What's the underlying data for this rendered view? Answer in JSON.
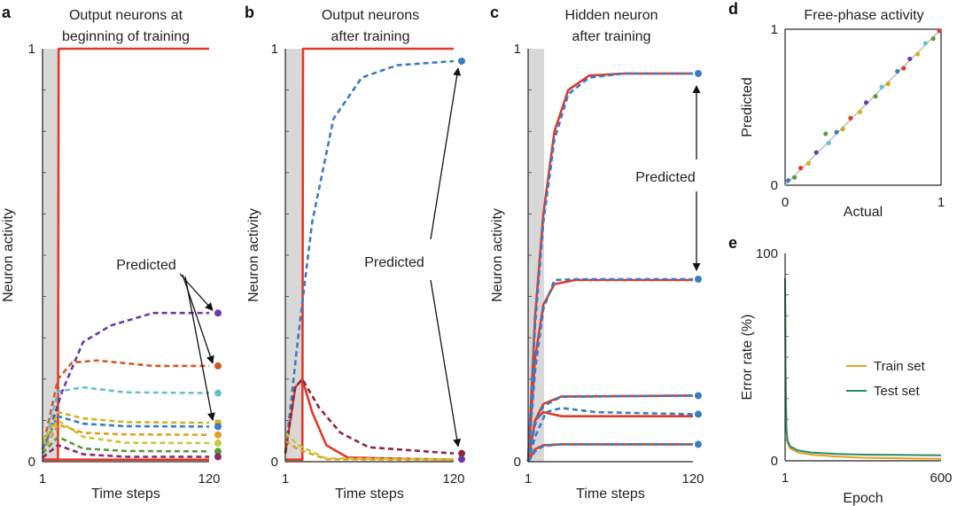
{
  "chart_data": [
    {
      "id": "a",
      "panel_label": "a",
      "type": "line",
      "title_lines": [
        "Output neurons at",
        "beginning of training"
      ],
      "xlabel": "Time steps",
      "ylabel": "Neuron activity",
      "xticks": [
        "1",
        "120"
      ],
      "yticks": [
        "0",
        "1"
      ],
      "xlim": [
        1,
        120
      ],
      "ylim": [
        0,
        1
      ],
      "annotation": "Predicted",
      "series": [
        {
          "style": "solid",
          "color": "#e03a2a",
          "points": [
            [
              1,
              0.005
            ],
            [
              12,
              0.005
            ],
            [
              12.5,
              1
            ],
            [
              120,
              1
            ]
          ]
        },
        {
          "style": "solid",
          "color": "#e03a2a",
          "points": [
            [
              1,
              0.005
            ],
            [
              120,
              0.005
            ]
          ]
        },
        {
          "style": "dashed",
          "color": "#6a3aa8",
          "points": [
            [
              1,
              0.02
            ],
            [
              15,
              0.17
            ],
            [
              30,
              0.29
            ],
            [
              50,
              0.33
            ],
            [
              80,
              0.36
            ],
            [
              120,
              0.36
            ]
          ]
        },
        {
          "style": "dashed",
          "color": "#d05a2a",
          "points": [
            [
              1,
              0.03
            ],
            [
              12,
              0.2
            ],
            [
              22,
              0.24
            ],
            [
              40,
              0.245
            ],
            [
              80,
              0.232
            ],
            [
              120,
              0.232
            ]
          ]
        },
        {
          "style": "dashed",
          "color": "#66c0cc",
          "points": [
            [
              1,
              0.02
            ],
            [
              12,
              0.17
            ],
            [
              30,
              0.18
            ],
            [
              60,
              0.168
            ],
            [
              120,
              0.166
            ]
          ]
        },
        {
          "style": "dashed",
          "color": "#d4b21a",
          "points": [
            [
              1,
              0.04
            ],
            [
              12,
              0.12
            ],
            [
              30,
              0.105
            ],
            [
              60,
              0.096
            ],
            [
              120,
              0.094
            ]
          ]
        },
        {
          "style": "dashed",
          "color": "#3a7cc4",
          "points": [
            [
              1,
              0.03
            ],
            [
              12,
              0.11
            ],
            [
              30,
              0.092
            ],
            [
              60,
              0.086
            ],
            [
              120,
              0.085
            ]
          ]
        },
        {
          "style": "dashed",
          "color": "#e0a020",
          "points": [
            [
              1,
              0.02
            ],
            [
              12,
              0.09
            ],
            [
              30,
              0.07
            ],
            [
              60,
              0.066
            ],
            [
              120,
              0.065
            ]
          ]
        },
        {
          "style": "dashed",
          "color": "#c8c83a",
          "points": [
            [
              1,
              0.05
            ],
            [
              12,
              0.1
            ],
            [
              30,
              0.06
            ],
            [
              60,
              0.046
            ],
            [
              120,
              0.045
            ]
          ]
        },
        {
          "style": "dashed",
          "color": "#5a9a3a",
          "points": [
            [
              1,
              0.02
            ],
            [
              12,
              0.06
            ],
            [
              30,
              0.032
            ],
            [
              60,
              0.026
            ],
            [
              120,
              0.025
            ]
          ]
        },
        {
          "style": "dashed",
          "color": "#8a2a6a",
          "points": [
            [
              1,
              0.01
            ],
            [
              12,
              0.04
            ],
            [
              30,
              0.018
            ],
            [
              60,
              0.012
            ],
            [
              120,
              0.012
            ]
          ]
        }
      ],
      "end_markers": [
        {
          "y": 0.36,
          "color": "#6a3aa8"
        },
        {
          "y": 0.232,
          "color": "#d05a2a"
        },
        {
          "y": 0.166,
          "color": "#66c0cc"
        },
        {
          "y": 0.094,
          "color": "#d4b21a"
        },
        {
          "y": 0.085,
          "color": "#3a7cc4"
        },
        {
          "y": 0.065,
          "color": "#e0a020"
        },
        {
          "y": 0.045,
          "color": "#c8c83a"
        },
        {
          "y": 0.025,
          "color": "#5a9a3a"
        },
        {
          "y": 0.012,
          "color": "#8a2a6a"
        }
      ]
    },
    {
      "id": "b",
      "panel_label": "b",
      "type": "line",
      "title_lines": [
        "Output neurons",
        "after training"
      ],
      "xlabel": "Time steps",
      "ylabel": "Neuron activity",
      "xticks": [
        "1",
        "120"
      ],
      "yticks": [
        "0",
        "1"
      ],
      "xlim": [
        1,
        120
      ],
      "ylim": [
        0,
        1
      ],
      "annotation": "Predicted",
      "series": [
        {
          "style": "solid",
          "color": "#e03a2a",
          "points": [
            [
              1,
              0.005
            ],
            [
              13,
              0.005
            ],
            [
              13.5,
              1
            ],
            [
              120,
              1
            ]
          ]
        },
        {
          "style": "solid",
          "color": "#e03a2a",
          "points": [
            [
              1,
              0.02
            ],
            [
              8,
              0.18
            ],
            [
              13,
              0.2
            ],
            [
              20,
              0.12
            ],
            [
              30,
              0.04
            ],
            [
              45,
              0.01
            ],
            [
              120,
              0.005
            ]
          ]
        },
        {
          "style": "dashed",
          "color": "#3a7cc4",
          "points": [
            [
              1,
              0.02
            ],
            [
              10,
              0.3
            ],
            [
              20,
              0.58
            ],
            [
              35,
              0.83
            ],
            [
              55,
              0.93
            ],
            [
              80,
              0.96
            ],
            [
              120,
              0.97
            ]
          ]
        },
        {
          "style": "dashed",
          "color": "#8a2a3a",
          "points": [
            [
              1,
              0.02
            ],
            [
              8,
              0.18
            ],
            [
              13,
              0.2
            ],
            [
              25,
              0.13
            ],
            [
              40,
              0.07
            ],
            [
              60,
              0.035
            ],
            [
              120,
              0.02
            ]
          ]
        },
        {
          "style": "dashed",
          "color": "#e0a020",
          "points": [
            [
              1,
              0.05
            ],
            [
              10,
              0.03
            ],
            [
              30,
              0.006
            ],
            [
              120,
              0.004
            ]
          ]
        },
        {
          "style": "dashed",
          "color": "#c8c83a",
          "points": [
            [
              1,
              0.07
            ],
            [
              10,
              0.04
            ],
            [
              30,
              0.008
            ],
            [
              120,
              0.006
            ]
          ]
        }
      ],
      "end_markers": [
        {
          "y": 0.97,
          "color": "#3a7cc4"
        },
        {
          "y": 0.02,
          "color": "#8a2a3a"
        },
        {
          "y": 0.006,
          "color": "#6a3aa8"
        }
      ]
    },
    {
      "id": "c",
      "panel_label": "c",
      "type": "line",
      "title_lines": [
        "Hidden neuron",
        "after training"
      ],
      "xlabel": "Time steps",
      "ylabel": "Neuron activity",
      "xticks": [
        "1",
        "120"
      ],
      "yticks": [
        "0",
        "1"
      ],
      "xlim": [
        1,
        120
      ],
      "ylim": [
        0,
        1
      ],
      "annotation": "Predicted",
      "series": [
        {
          "style": "solid",
          "color": "#e03a2a",
          "points": [
            [
              1,
              0.0
            ],
            [
              6,
              0.35
            ],
            [
              12,
              0.6
            ],
            [
              20,
              0.8
            ],
            [
              30,
              0.9
            ],
            [
              45,
              0.935
            ],
            [
              70,
              0.94
            ],
            [
              120,
              0.94
            ]
          ]
        },
        {
          "style": "solid",
          "color": "#e03a2a",
          "points": [
            [
              1,
              0.0
            ],
            [
              6,
              0.25
            ],
            [
              12,
              0.38
            ],
            [
              20,
              0.43
            ],
            [
              35,
              0.44
            ],
            [
              120,
              0.44
            ]
          ]
        },
        {
          "style": "solid",
          "color": "#e03a2a",
          "points": [
            [
              1,
              0.0
            ],
            [
              6,
              0.1
            ],
            [
              12,
              0.14
            ],
            [
              25,
              0.158
            ],
            [
              120,
              0.16
            ]
          ]
        },
        {
          "style": "solid",
          "color": "#e03a2a",
          "points": [
            [
              1,
              0.0
            ],
            [
              6,
              0.1
            ],
            [
              12,
              0.12
            ],
            [
              25,
              0.11
            ],
            [
              120,
              0.11
            ]
          ]
        },
        {
          "style": "solid",
          "color": "#e03a2a",
          "points": [
            [
              1,
              0.0
            ],
            [
              6,
              0.03
            ],
            [
              12,
              0.04
            ],
            [
              25,
              0.042
            ],
            [
              120,
              0.042
            ]
          ]
        },
        {
          "style": "dashed",
          "color": "#3a7cc4",
          "points": [
            [
              1,
              0.0
            ],
            [
              6,
              0.33
            ],
            [
              12,
              0.58
            ],
            [
              20,
              0.78
            ],
            [
              30,
              0.89
            ],
            [
              45,
              0.93
            ],
            [
              70,
              0.94
            ],
            [
              120,
              0.94
            ]
          ]
        },
        {
          "style": "dashed",
          "color": "#3a7cc4",
          "points": [
            [
              1,
              0.0
            ],
            [
              6,
              0.22
            ],
            [
              12,
              0.37
            ],
            [
              20,
              0.44
            ],
            [
              35,
              0.442
            ],
            [
              120,
              0.442
            ]
          ]
        },
        {
          "style": "dashed",
          "color": "#3a7cc4",
          "points": [
            [
              1,
              0.0
            ],
            [
              6,
              0.09
            ],
            [
              12,
              0.135
            ],
            [
              25,
              0.157
            ],
            [
              120,
              0.16
            ]
          ]
        },
        {
          "style": "dashed",
          "color": "#3a7cc4",
          "points": [
            [
              1,
              0.0
            ],
            [
              6,
              0.06
            ],
            [
              14,
              0.12
            ],
            [
              25,
              0.13
            ],
            [
              50,
              0.12
            ],
            [
              120,
              0.115
            ]
          ]
        },
        {
          "style": "dashed",
          "color": "#3a7cc4",
          "points": [
            [
              1,
              0.0
            ],
            [
              6,
              0.025
            ],
            [
              12,
              0.038
            ],
            [
              25,
              0.042
            ],
            [
              120,
              0.042
            ]
          ]
        }
      ],
      "end_markers": [
        {
          "y": 0.94,
          "color": "#3a7cc4"
        },
        {
          "y": 0.442,
          "color": "#3a7cc4"
        },
        {
          "y": 0.16,
          "color": "#3a7cc4"
        },
        {
          "y": 0.115,
          "color": "#3a7cc4"
        },
        {
          "y": 0.042,
          "color": "#3a7cc4"
        }
      ]
    },
    {
      "id": "d",
      "panel_label": "d",
      "type": "scatter",
      "title": "Free-phase activity",
      "xlabel": "Actual",
      "ylabel": "Predicted",
      "xticks": [
        "0",
        "1"
      ],
      "yticks": [
        "0",
        "1"
      ],
      "xlim": [
        0,
        1
      ],
      "ylim": [
        0,
        1
      ],
      "points": [
        {
          "x": 0.02,
          "y": 0.03,
          "color": "#3a7cc4"
        },
        {
          "x": 0.06,
          "y": 0.05,
          "color": "#5a9a3a"
        },
        {
          "x": 0.1,
          "y": 0.11,
          "color": "#e03a2a"
        },
        {
          "x": 0.15,
          "y": 0.14,
          "color": "#d4b21a"
        },
        {
          "x": 0.2,
          "y": 0.21,
          "color": "#6a3aa8"
        },
        {
          "x": 0.26,
          "y": 0.33,
          "color": "#5a9a3a"
        },
        {
          "x": 0.28,
          "y": 0.27,
          "color": "#66c0cc"
        },
        {
          "x": 0.33,
          "y": 0.34,
          "color": "#3a7cc4"
        },
        {
          "x": 0.37,
          "y": 0.36,
          "color": "#e0a020"
        },
        {
          "x": 0.42,
          "y": 0.43,
          "color": "#e03a2a"
        },
        {
          "x": 0.48,
          "y": 0.47,
          "color": "#d4b21a"
        },
        {
          "x": 0.52,
          "y": 0.53,
          "color": "#6a3aa8"
        },
        {
          "x": 0.58,
          "y": 0.57,
          "color": "#5a9a3a"
        },
        {
          "x": 0.62,
          "y": 0.63,
          "color": "#66c0cc"
        },
        {
          "x": 0.66,
          "y": 0.65,
          "color": "#e0a020"
        },
        {
          "x": 0.72,
          "y": 0.73,
          "color": "#3a7cc4"
        },
        {
          "x": 0.76,
          "y": 0.75,
          "color": "#e03a2a"
        },
        {
          "x": 0.8,
          "y": 0.81,
          "color": "#6a3aa8"
        },
        {
          "x": 0.85,
          "y": 0.84,
          "color": "#d4b21a"
        },
        {
          "x": 0.9,
          "y": 0.91,
          "color": "#66c0cc"
        },
        {
          "x": 0.95,
          "y": 0.94,
          "color": "#5a9a3a"
        },
        {
          "x": 0.99,
          "y": 0.99,
          "color": "#e03a2a"
        }
      ]
    },
    {
      "id": "e",
      "panel_label": "e",
      "type": "line",
      "xlabel": "Epoch",
      "ylabel": "Error rate (%)",
      "xticks": [
        "1",
        "600"
      ],
      "yticks": [
        "0",
        "100"
      ],
      "xlim": [
        1,
        600
      ],
      "ylim": [
        0,
        100
      ],
      "legend_position": "right",
      "series": [
        {
          "name": "Train set",
          "style": "solid",
          "color": "#e8a020",
          "points": [
            [
              1,
              88
            ],
            [
              3,
              40
            ],
            [
              6,
              15
            ],
            [
              10,
              9
            ],
            [
              20,
              6
            ],
            [
              50,
              4
            ],
            [
              100,
              3
            ],
            [
              200,
              2
            ],
            [
              300,
              1.5
            ],
            [
              450,
              1.2
            ],
            [
              600,
              1
            ]
          ]
        },
        {
          "name": "Test set",
          "style": "solid",
          "color": "#2a8a6a",
          "points": [
            [
              1,
              88
            ],
            [
              3,
              41
            ],
            [
              6,
              16
            ],
            [
              10,
              10
            ],
            [
              20,
              7
            ],
            [
              50,
              5
            ],
            [
              100,
              4
            ],
            [
              200,
              3.3
            ],
            [
              300,
              3
            ],
            [
              450,
              2.8
            ],
            [
              600,
              2.7
            ]
          ]
        }
      ]
    }
  ]
}
